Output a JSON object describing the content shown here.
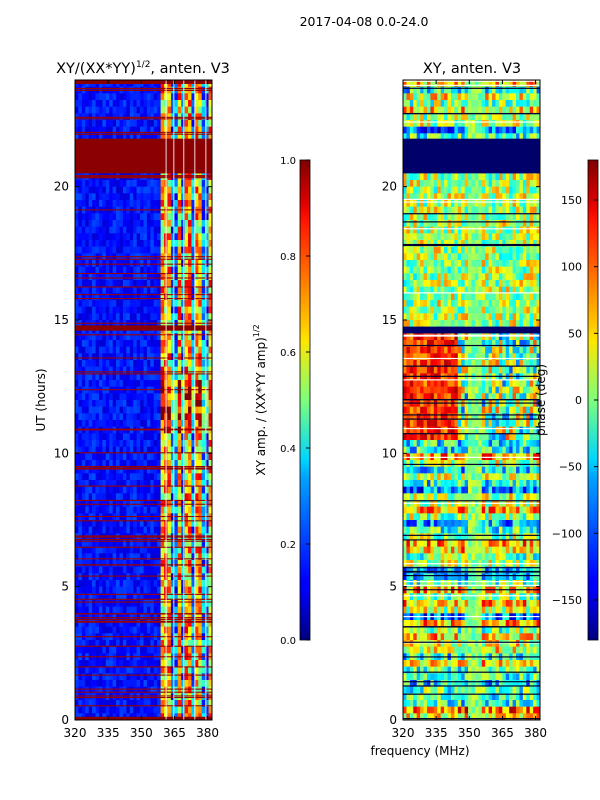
{
  "figure": {
    "suptitle": "2017-04-08 0.0-24.0",
    "xlabel": "frequency (MHz)"
  },
  "chart_data": [
    {
      "type": "heatmap",
      "title": "XY/(XX*YY)",
      "title_exponent": "1/2",
      "title_suffix": ", anten. V3",
      "xlabel": "",
      "ylabel": "UT (hours)",
      "xlim": [
        320,
        382
      ],
      "ylim": [
        0,
        24
      ],
      "xticks": [
        "320",
        "335",
        "350",
        "365",
        "380"
      ],
      "xtick_values": [
        320,
        335,
        350,
        365,
        380
      ],
      "yticks": [
        "0",
        "5",
        "10",
        "15",
        "20"
      ],
      "ytick_values": [
        0,
        5,
        10,
        15,
        20
      ],
      "colorbar": {
        "label": "XY amp. / (XX*YY amp)",
        "label_exponent": "1/2",
        "range": [
          0.0,
          1.0
        ],
        "ticks": [
          "0.0",
          "0.2",
          "0.4",
          "0.6",
          "0.8",
          "1.0"
        ],
        "tick_values": [
          0.0,
          0.2,
          0.4,
          0.6,
          0.8,
          1.0
        ],
        "colormap": "jet"
      },
      "saturated_bands_hours": [
        [
          20.5,
          21.8
        ],
        [
          23.85,
          24.0
        ],
        [
          14.6,
          14.8
        ],
        [
          0.0,
          0.12
        ]
      ],
      "bright_freq_bands_mhz": [
        [
          358,
          362
        ],
        [
          362,
          364
        ],
        [
          366,
          368
        ],
        [
          370,
          373
        ],
        [
          375,
          378
        ],
        [
          380,
          382
        ]
      ]
    },
    {
      "type": "heatmap",
      "title": "XY, anten. V3",
      "xlabel": "",
      "ylabel": "",
      "xlim": [
        320,
        382
      ],
      "ylim": [
        0,
        24
      ],
      "xticks": [
        "320",
        "335",
        "350",
        "365",
        "380"
      ],
      "xtick_values": [
        320,
        335,
        350,
        365,
        380
      ],
      "yticks": [
        "0",
        "5",
        "10",
        "15",
        "20"
      ],
      "ytick_values": [
        0,
        5,
        10,
        15,
        20
      ],
      "colorbar": {
        "label": "phase (deg)",
        "range": [
          -180,
          180
        ],
        "ticks": [
          "150",
          "100",
          "50",
          "0",
          "−50",
          "−100",
          "−150"
        ],
        "tick_values": [
          150,
          100,
          50,
          0,
          -50,
          -100,
          -150
        ],
        "colormap": "jet"
      },
      "dark_band_hours": [
        [
          20.5,
          21.8
        ],
        [
          14.5,
          14.75
        ]
      ]
    }
  ]
}
